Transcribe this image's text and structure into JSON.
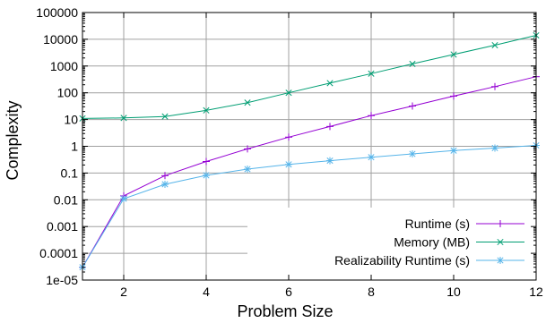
{
  "chart_data": {
    "type": "line",
    "title": "",
    "xlabel": "Problem Size",
    "ylabel": "Complexity",
    "xlim": [
      1,
      12
    ],
    "ylim": [
      1e-05,
      100000
    ],
    "yscale": "log",
    "grid": true,
    "legend_position": "bottom-right",
    "x_ticks": [
      "2",
      "4",
      "6",
      "8",
      "10",
      "12"
    ],
    "y_ticks": [
      "1e-05",
      "0.0001",
      "0.001",
      "0.01",
      "0.1",
      "1",
      "10",
      "100",
      "1000",
      "10000",
      "100000"
    ],
    "x": [
      1,
      2,
      3,
      4,
      5,
      6,
      7,
      8,
      9,
      10,
      11,
      12
    ],
    "series": [
      {
        "name": "Runtime (s)",
        "color": "#9400d3",
        "marker": "plus",
        "values": [
          3e-05,
          0.014,
          0.08,
          0.27,
          0.8,
          2.2,
          5.5,
          14,
          32,
          75,
          170,
          400
        ]
      },
      {
        "name": "Memory (MB)",
        "color": "#009e73",
        "marker": "cross",
        "values": [
          11,
          11.5,
          13,
          22,
          43,
          100,
          230,
          520,
          1200,
          2700,
          6000,
          14000
        ]
      },
      {
        "name": "Realizability Runtime (s)",
        "color": "#56b4e9",
        "marker": "star",
        "values": [
          3e-05,
          0.011,
          0.038,
          0.082,
          0.14,
          0.21,
          0.29,
          0.39,
          0.52,
          0.69,
          0.86,
          1.08
        ]
      }
    ]
  }
}
